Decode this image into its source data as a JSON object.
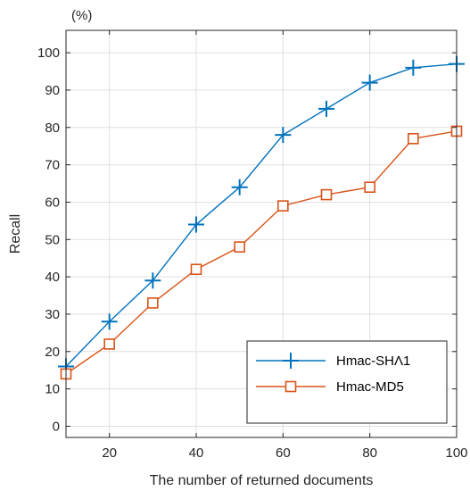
{
  "chart_data": {
    "type": "line",
    "title": "",
    "xlabel": "The number of returned documents",
    "ylabel": "Recall",
    "y_unit": "(%)",
    "xlim": [
      10,
      100
    ],
    "ylim": [
      -3,
      106
    ],
    "x_ticks": [
      20,
      40,
      60,
      80,
      100
    ],
    "y_ticks": [
      0,
      10,
      20,
      30,
      40,
      50,
      60,
      70,
      80,
      90,
      100
    ],
    "grid": true,
    "legend_position": "bottom-right",
    "series": [
      {
        "name": "Hmac-SHΛ1",
        "color": "#0072BD",
        "marker": "plus",
        "x": [
          10,
          20,
          30,
          40,
          50,
          60,
          70,
          80,
          90,
          100
        ],
        "y": [
          16,
          28,
          39,
          54,
          64,
          78,
          85,
          92,
          96,
          97
        ]
      },
      {
        "name": "Hmac-MD5",
        "color": "#D95319",
        "marker": "square",
        "x": [
          10,
          20,
          30,
          40,
          50,
          60,
          70,
          80,
          90,
          100
        ],
        "y": [
          14,
          22,
          33,
          42,
          48,
          59,
          62,
          64,
          77,
          79
        ]
      }
    ]
  }
}
